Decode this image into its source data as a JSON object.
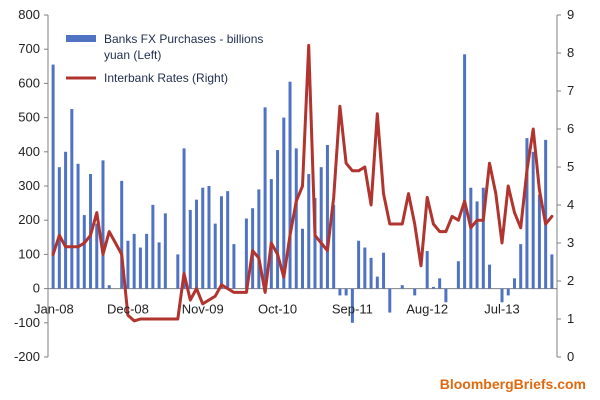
{
  "chart_data": {
    "type": "bar-line combo",
    "x_labels": [
      "Jan-08",
      "Dec-08",
      "Nov-09",
      "Oct-10",
      "Sep-11",
      "Aug-12",
      "Jul-13"
    ],
    "left_axis": {
      "min": -200,
      "max": 800,
      "step": 100,
      "ticks": [
        "-200",
        "-100",
        "0",
        "100",
        "200",
        "300",
        "400",
        "500",
        "600",
        "700",
        "800"
      ]
    },
    "right_axis": {
      "min": 0,
      "max": 9,
      "step": 1,
      "ticks": [
        "0",
        "1",
        "2",
        "3",
        "4",
        "5",
        "6",
        "7",
        "8",
        "9"
      ]
    },
    "grid": false,
    "legend_position": "top-left inside",
    "series": [
      {
        "name": "Banks FX Purchases - billions yuan (Left)",
        "type": "bar",
        "axis": "left",
        "color": "#4f72c3",
        "values": [
          655,
          355,
          400,
          525,
          365,
          215,
          335,
          190,
          375,
          10,
          0,
          315,
          140,
          160,
          120,
          160,
          245,
          135,
          220,
          0,
          100,
          410,
          230,
          260,
          295,
          300,
          190,
          270,
          285,
          130,
          0,
          205,
          235,
          290,
          530,
          320,
          405,
          500,
          605,
          410,
          175,
          335,
          265,
          355,
          420,
          245,
          -20,
          -20,
          -100,
          140,
          120,
          90,
          35,
          105,
          -70,
          0,
          10,
          0,
          -20,
          0,
          110,
          5,
          30,
          -40,
          0,
          80,
          685,
          295,
          255,
          295,
          70,
          0,
          -40,
          -20,
          30,
          130,
          440,
          400,
          275,
          435,
          100
        ]
      },
      {
        "name": "Interbank Rates (Right)",
        "type": "line",
        "axis": "right",
        "color": "#b1342f",
        "values": [
          2.7,
          3.2,
          2.9,
          2.9,
          2.9,
          3.0,
          3.2,
          3.8,
          2.7,
          3.3,
          3.0,
          2.7,
          1.1,
          0.95,
          1.0,
          1.0,
          1.0,
          1.0,
          1.0,
          1.0,
          1.0,
          2.2,
          1.5,
          1.8,
          1.4,
          1.5,
          1.6,
          1.9,
          1.8,
          1.7,
          1.7,
          1.7,
          2.8,
          2.6,
          1.7,
          3.0,
          2.7,
          2.1,
          3.2,
          4.1,
          4.5,
          8.2,
          3.2,
          3.0,
          2.8,
          4.2,
          6.6,
          5.1,
          4.9,
          4.9,
          5.0,
          4.0,
          6.4,
          4.3,
          3.5,
          3.5,
          3.5,
          4.3,
          3.5,
          2.4,
          4.2,
          3.5,
          3.3,
          3.3,
          3.7,
          3.6,
          4.1,
          3.4,
          3.6,
          3.6,
          5.1,
          4.3,
          3.0,
          4.5,
          3.8,
          3.4,
          4.9,
          6.0,
          4.4,
          3.5,
          3.7
        ]
      }
    ],
    "footer": "BloombergBriefs.com"
  }
}
